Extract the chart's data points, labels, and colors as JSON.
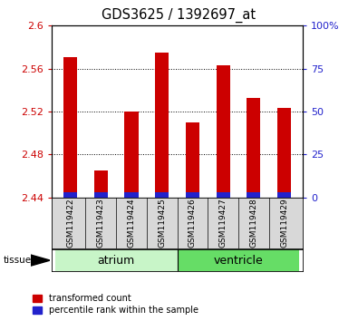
{
  "title": "GDS3625 / 1392697_at",
  "samples": [
    "GSM119422",
    "GSM119423",
    "GSM119424",
    "GSM119425",
    "GSM119426",
    "GSM119427",
    "GSM119428",
    "GSM119429"
  ],
  "red_values": [
    2.571,
    2.465,
    2.52,
    2.575,
    2.51,
    2.563,
    2.533,
    2.523
  ],
  "ymin": 2.44,
  "ymax": 2.6,
  "yticks": [
    2.44,
    2.48,
    2.52,
    2.56,
    2.6
  ],
  "right_yticks": [
    0,
    25,
    50,
    75,
    100
  ],
  "tissues": [
    {
      "label": "atrium",
      "start": 0,
      "end": 3,
      "color": "#c8f5c8"
    },
    {
      "label": "ventricle",
      "start": 4,
      "end": 7,
      "color": "#66dd66"
    }
  ],
  "bar_width": 0.45,
  "red_color": "#cc0000",
  "blue_color": "#2222cc",
  "bg_color": "#d8d8d8",
  "plot_bg": "#ffffff",
  "ylabel_left_color": "#cc0000",
  "ylabel_right_color": "#2222cc",
  "legend_red_label": "transformed count",
  "legend_blue_label": "percentile rank within the sample"
}
